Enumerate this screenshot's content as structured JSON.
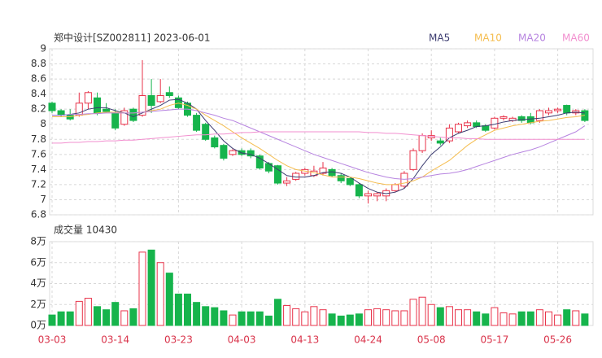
{
  "chart_data": [
    {
      "type": "candlestick",
      "title": "郑中设计[SZ002811] 2023-06-01",
      "up_color": "#e8334a",
      "down_color": "#16b44c",
      "grid": true,
      "ylim": [
        6.8,
        9
      ],
      "yticks": [
        6.8,
        7,
        7.2,
        7.4,
        7.6,
        7.8,
        8,
        8.2,
        8.4,
        8.6,
        8.8,
        9
      ],
      "open": [
        8.28,
        8.18,
        8.12,
        8.12,
        8.28,
        8.35,
        8.2,
        8.15,
        8.0,
        8.2,
        8.12,
        8.38,
        8.3,
        8.42,
        8.35,
        8.28,
        8.12,
        8.0,
        7.82,
        7.72,
        7.6,
        7.65,
        7.65,
        7.58,
        7.48,
        7.45,
        7.22,
        7.27,
        7.35,
        7.32,
        7.35,
        7.4,
        7.32,
        7.28,
        7.2,
        7.05,
        7.05,
        7.05,
        7.12,
        7.18,
        7.4,
        7.65,
        7.82,
        7.78,
        7.78,
        7.9,
        7.98,
        8.02,
        7.98,
        7.95,
        8.08,
        8.05,
        8.1,
        8.1,
        8.05,
        8.15,
        8.18,
        8.25,
        8.15,
        8.18
      ],
      "high": [
        8.3,
        8.2,
        8.2,
        8.42,
        8.44,
        8.42,
        8.28,
        8.2,
        8.22,
        8.22,
        8.85,
        8.6,
        8.6,
        8.5,
        8.38,
        8.3,
        8.15,
        8.02,
        7.85,
        7.74,
        7.67,
        7.68,
        7.68,
        7.6,
        7.5,
        7.46,
        7.3,
        7.37,
        7.42,
        7.45,
        7.5,
        7.42,
        7.35,
        7.3,
        7.22,
        7.12,
        7.1,
        7.15,
        7.22,
        7.38,
        7.68,
        7.88,
        7.92,
        7.82,
        8.0,
        8.02,
        8.05,
        8.05,
        8.0,
        8.1,
        8.12,
        8.1,
        8.12,
        8.15,
        8.2,
        8.22,
        8.22,
        8.26,
        8.2,
        8.2
      ],
      "low": [
        8.15,
        8.1,
        8.05,
        8.1,
        8.2,
        8.12,
        8.15,
        7.92,
        7.98,
        8.03,
        8.1,
        8.15,
        8.28,
        8.35,
        8.2,
        8.1,
        7.9,
        7.78,
        7.68,
        7.52,
        7.58,
        7.58,
        7.55,
        7.4,
        7.35,
        7.2,
        7.18,
        7.25,
        7.32,
        7.3,
        7.32,
        7.3,
        7.22,
        7.18,
        7.02,
        6.95,
        6.98,
        6.98,
        7.1,
        7.15,
        7.38,
        7.62,
        7.78,
        7.72,
        7.75,
        7.88,
        7.95,
        7.95,
        7.9,
        7.93,
        8.05,
        8.03,
        8.02,
        8.0,
        8.02,
        8.12,
        8.15,
        8.12,
        8.12,
        8.03
      ],
      "close": [
        8.18,
        8.12,
        8.07,
        8.28,
        8.42,
        8.15,
        8.17,
        7.95,
        8.18,
        8.05,
        8.38,
        8.25,
        8.38,
        8.38,
        8.22,
        8.12,
        7.92,
        7.8,
        7.7,
        7.55,
        7.65,
        7.6,
        7.58,
        7.42,
        7.38,
        7.22,
        7.25,
        7.35,
        7.4,
        7.38,
        7.42,
        7.32,
        7.25,
        7.2,
        7.05,
        7.08,
        7.08,
        7.12,
        7.2,
        7.35,
        7.65,
        7.85,
        7.85,
        7.75,
        7.95,
        8.0,
        8.02,
        7.97,
        7.92,
        8.08,
        8.1,
        8.08,
        8.05,
        8.02,
        8.18,
        8.18,
        8.2,
        8.15,
        8.18,
        8.05
      ],
      "series": [
        {
          "name": "MA5",
          "color": "#3b3b70",
          "values": [
            8.12,
            8.12,
            8.13,
            8.15,
            8.2,
            8.22,
            8.22,
            8.18,
            8.15,
            8.1,
            8.15,
            8.2,
            8.25,
            8.32,
            8.33,
            8.28,
            8.2,
            8.05,
            7.92,
            7.78,
            7.68,
            7.62,
            7.6,
            7.55,
            7.48,
            7.4,
            7.32,
            7.3,
            7.3,
            7.32,
            7.36,
            7.37,
            7.35,
            7.3,
            7.22,
            7.15,
            7.1,
            7.08,
            7.1,
            7.15,
            7.28,
            7.45,
            7.6,
            7.7,
            7.82,
            7.88,
            7.92,
            7.97,
            7.98,
            8.0,
            8.03,
            8.05,
            8.06,
            8.07,
            8.08,
            8.1,
            8.12,
            8.15,
            8.16,
            8.15
          ]
        },
        {
          "name": "MA10",
          "color": "#f5bd4f",
          "values": [
            8.1,
            8.1,
            8.1,
            8.12,
            8.13,
            8.15,
            8.16,
            8.16,
            8.15,
            8.15,
            8.16,
            8.18,
            8.2,
            8.25,
            8.28,
            8.25,
            8.2,
            8.12,
            8.05,
            7.98,
            7.9,
            7.82,
            7.75,
            7.68,
            7.6,
            7.52,
            7.45,
            7.4,
            7.38,
            7.36,
            7.33,
            7.3,
            7.3,
            7.3,
            7.28,
            7.25,
            7.22,
            7.2,
            7.2,
            7.22,
            7.25,
            7.3,
            7.38,
            7.45,
            7.52,
            7.62,
            7.72,
            7.8,
            7.86,
            7.92,
            7.95,
            7.98,
            8.0,
            8.02,
            8.04,
            8.05,
            8.07,
            8.09,
            8.1,
            8.12
          ]
        },
        {
          "name": "MA20",
          "color": "#b784e0",
          "values": [
            8.12,
            8.12,
            8.13,
            8.13,
            8.14,
            8.14,
            8.15,
            8.15,
            8.15,
            8.15,
            8.16,
            8.17,
            8.18,
            8.19,
            8.2,
            8.2,
            8.18,
            8.15,
            8.12,
            8.08,
            8.05,
            8.0,
            7.95,
            7.9,
            7.85,
            7.8,
            7.75,
            7.7,
            7.65,
            7.6,
            7.56,
            7.52,
            7.48,
            7.44,
            7.4,
            7.36,
            7.33,
            7.3,
            7.28,
            7.27,
            7.28,
            7.3,
            7.32,
            7.34,
            7.35,
            7.37,
            7.4,
            7.44,
            7.48,
            7.52,
            7.56,
            7.6,
            7.63,
            7.66,
            7.7,
            7.75,
            7.8,
            7.85,
            7.9,
            7.98
          ]
        },
        {
          "name": "MA60",
          "color": "#f28fcf",
          "values": [
            7.75,
            7.75,
            7.76,
            7.76,
            7.77,
            7.77,
            7.78,
            7.78,
            7.79,
            7.79,
            7.8,
            7.81,
            7.82,
            7.83,
            7.84,
            7.85,
            7.86,
            7.86,
            7.87,
            7.87,
            7.88,
            7.89,
            7.89,
            7.9,
            7.9,
            7.9,
            7.9,
            7.9,
            7.9,
            7.9,
            7.9,
            7.9,
            7.9,
            7.9,
            7.9,
            7.89,
            7.89,
            7.88,
            7.88,
            7.87,
            7.86,
            7.85,
            7.84,
            7.83,
            7.82,
            7.82,
            7.81,
            7.81,
            7.8,
            7.8,
            7.8,
            7.8,
            7.8,
            7.8,
            7.8,
            7.8,
            7.8,
            7.8,
            7.8,
            7.8
          ]
        }
      ]
    },
    {
      "type": "bar",
      "title": "成交量 10430",
      "grid": true,
      "categories": [
        "03-03",
        null,
        null,
        null,
        null,
        null,
        null,
        "03-14",
        null,
        null,
        null,
        null,
        null,
        null,
        "03-23",
        null,
        null,
        null,
        null,
        null,
        null,
        "04-03",
        null,
        null,
        null,
        null,
        null,
        null,
        "04-13",
        null,
        null,
        null,
        null,
        null,
        null,
        "04-24",
        null,
        null,
        null,
        null,
        null,
        null,
        "05-08",
        null,
        null,
        null,
        null,
        null,
        null,
        "05-17",
        null,
        null,
        null,
        null,
        null,
        null,
        "05-26",
        null,
        null,
        null
      ],
      "values": [
        1.0,
        1.3,
        1.3,
        2.3,
        2.6,
        1.8,
        1.5,
        2.2,
        1.4,
        1.6,
        7.0,
        7.2,
        6.0,
        5.0,
        3.0,
        3.0,
        2.2,
        1.8,
        1.7,
        1.4,
        1.0,
        1.3,
        1.3,
        1.3,
        0.9,
        2.5,
        1.9,
        1.6,
        1.3,
        1.8,
        1.5,
        1.1,
        0.9,
        1.0,
        1.1,
        1.5,
        1.6,
        1.5,
        1.4,
        1.4,
        2.5,
        2.7,
        2.0,
        1.7,
        1.8,
        1.5,
        1.5,
        1.3,
        1.1,
        1.7,
        1.2,
        1.1,
        1.3,
        1.3,
        1.5,
        1.3,
        1.0,
        1.5,
        1.4,
        1.1
      ],
      "ylim": [
        0,
        8
      ],
      "yticks": [
        {
          "value": 0,
          "label": "0万"
        },
        {
          "value": 2,
          "label": "2万"
        },
        {
          "value": 4,
          "label": "4万"
        },
        {
          "value": 6,
          "label": "6万"
        },
        {
          "value": 8,
          "label": "8万"
        }
      ]
    }
  ]
}
